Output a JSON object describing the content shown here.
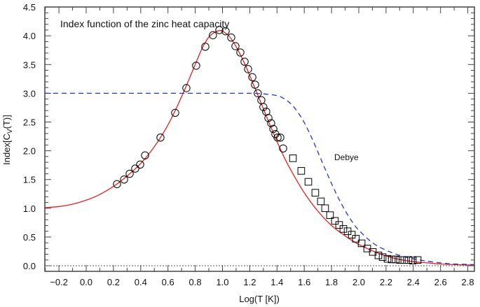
{
  "chart_data": {
    "type": "scatter",
    "title": "Index function of the zinc heat capacity",
    "xlabel": "Log(T [K])",
    "ylabel_main": "Index[C",
    "ylabel_sub": "V",
    "ylabel_tail": "(T)]",
    "xlim": [
      -0.31,
      2.85
    ],
    "ylim": [
      -0.1,
      4.5
    ],
    "x_ticks": [
      -0.2,
      0.0,
      0.2,
      0.4,
      0.6,
      0.8,
      1.0,
      1.2,
      1.4,
      1.6,
      1.8,
      2.0,
      2.2,
      2.4,
      2.6,
      2.8
    ],
    "x_tick_labels": [
      "−0.2",
      "0.0",
      "0.2",
      "0.4",
      "0.6",
      "0.8",
      "1.0",
      "1.2",
      "1.4",
      "1.6",
      "1.8",
      "2.0",
      "2.2",
      "2.4",
      "2.6",
      "2.8"
    ],
    "y_ticks": [
      0.0,
      0.5,
      1.0,
      1.5,
      2.0,
      2.5,
      3.0,
      3.5,
      4.0,
      4.5
    ],
    "y_tick_labels": [
      "0.0",
      "0.5",
      "1.0",
      "1.5",
      "2.0",
      "2.5",
      "3.0",
      "3.5",
      "4.0",
      "4.5"
    ],
    "grid": false,
    "legend": null,
    "annotations": [
      {
        "text": "Index function of the zinc heat capacity",
        "x": -0.12,
        "y": 4.18
      },
      {
        "text": "Debye",
        "x": 1.7,
        "y": 1.93
      }
    ],
    "series": [
      {
        "name": "Measured data (circles)",
        "marker": "circle",
        "color": "#000000",
        "x": [
          0.226,
          0.278,
          0.319,
          0.36,
          0.396,
          0.432,
          0.545,
          0.653,
          0.735,
          0.807,
          0.874,
          0.93,
          0.977,
          1.023,
          1.064,
          1.095,
          1.131,
          1.162,
          1.188,
          1.219,
          1.239,
          1.259,
          1.285,
          1.3,
          1.321,
          1.337,
          1.357,
          1.373,
          1.388,
          1.404,
          1.424,
          1.445
        ],
        "y": [
          1.42,
          1.5,
          1.6,
          1.69,
          1.76,
          1.92,
          2.23,
          2.66,
          3.09,
          3.48,
          3.81,
          4.01,
          4.1,
          4.08,
          3.97,
          3.82,
          3.71,
          3.55,
          3.42,
          3.28,
          3.15,
          3.0,
          2.88,
          2.76,
          2.68,
          2.57,
          2.48,
          2.38,
          2.29,
          2.23,
          2.23,
          2.04
        ]
      },
      {
        "name": "Measured data (squares)",
        "marker": "square",
        "color": "#000000",
        "x": [
          1.517,
          1.578,
          1.63,
          1.681,
          1.722,
          1.753,
          1.789,
          1.825,
          1.856,
          1.887,
          1.918,
          1.949,
          1.979,
          2.021,
          2.062,
          2.103,
          2.144,
          2.175,
          2.211,
          2.242,
          2.272,
          2.303,
          2.334,
          2.365,
          2.396,
          2.432
        ],
        "y": [
          1.87,
          1.65,
          1.46,
          1.27,
          1.12,
          1.0,
          0.88,
          0.78,
          0.71,
          0.64,
          0.6,
          0.54,
          0.47,
          0.39,
          0.3,
          0.24,
          0.18,
          0.15,
          0.12,
          0.11,
          0.11,
          0.1,
          0.1,
          0.1,
          0.09,
          0.1
        ]
      },
      {
        "name": "Fit",
        "style": "solid-line",
        "color": "#e8201c",
        "x": [
          -0.31,
          -0.2,
          -0.1,
          0.0,
          0.1,
          0.2,
          0.3,
          0.4,
          0.5,
          0.6,
          0.7,
          0.8,
          0.85,
          0.9,
          0.95,
          0.98,
          1.0,
          1.05,
          1.1,
          1.15,
          1.2,
          1.25,
          1.3,
          1.35,
          1.4,
          1.45,
          1.5,
          1.6,
          1.7,
          1.8,
          1.9,
          2.0,
          2.1,
          2.2,
          2.3,
          2.4,
          2.5,
          2.6,
          2.7,
          2.85
        ],
        "y": [
          1.01,
          1.03,
          1.07,
          1.14,
          1.24,
          1.38,
          1.56,
          1.78,
          2.07,
          2.45,
          2.94,
          3.5,
          3.78,
          3.98,
          4.07,
          4.09,
          4.08,
          3.99,
          3.81,
          3.58,
          3.31,
          3.02,
          2.73,
          2.44,
          2.16,
          1.9,
          1.67,
          1.27,
          0.95,
          0.7,
          0.52,
          0.37,
          0.26,
          0.17,
          0.11,
          0.07,
          0.05,
          0.03,
          0.02,
          0.01
        ]
      },
      {
        "name": "Debye",
        "style": "dashed-line",
        "color": "#2233dd",
        "x": [
          -0.31,
          0.0,
          0.5,
          1.0,
          1.2,
          1.3,
          1.4,
          1.45,
          1.5,
          1.55,
          1.6,
          1.65,
          1.7,
          1.75,
          1.8,
          1.85,
          1.9,
          1.95,
          2.0,
          2.1,
          2.2,
          2.3,
          2.4,
          2.5,
          2.6,
          2.7,
          2.85
        ],
        "y": [
          3.0,
          3.0,
          3.0,
          3.0,
          3.0,
          2.99,
          2.96,
          2.91,
          2.82,
          2.68,
          2.49,
          2.25,
          1.98,
          1.7,
          1.43,
          1.18,
          0.96,
          0.77,
          0.62,
          0.4,
          0.27,
          0.18,
          0.12,
          0.08,
          0.05,
          0.03,
          0.02
        ]
      },
      {
        "name": "Zero line",
        "style": "dotted-line",
        "color": "#555555",
        "x": [
          -0.31,
          2.85
        ],
        "y": [
          0.0,
          0.0
        ]
      }
    ]
  }
}
